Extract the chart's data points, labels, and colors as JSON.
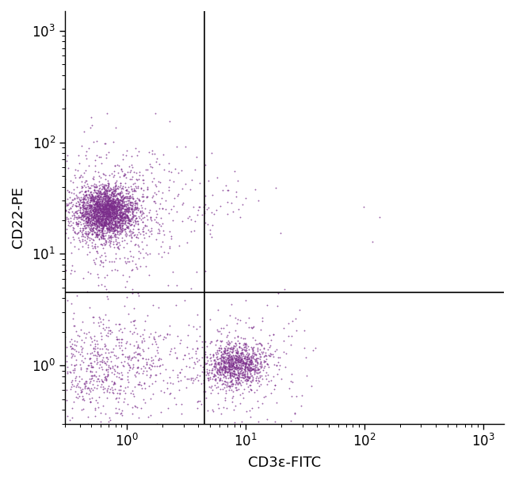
{
  "dot_color": "#7B2D8B",
  "dot_alpha": 0.75,
  "dot_size": 1.8,
  "background_color": "#ffffff",
  "xlabel": "CD3ε-FITC",
  "ylabel": "CD22-PE",
  "xline": 4.5,
  "yline": 4.5,
  "tick_vals": [
    1,
    10,
    100,
    1000
  ],
  "xlim": [
    0.3,
    1500
  ],
  "ylim": [
    0.3,
    1500
  ],
  "clusters": [
    {
      "name": "upper_left_B_cells",
      "center_x_log": -0.18,
      "center_y_log": 1.38,
      "spread_x": 0.22,
      "spread_y": 0.2,
      "n": 2200,
      "tight": true
    },
    {
      "name": "lower_left_neg",
      "center_x_log": -0.2,
      "center_y_log": 0.0,
      "spread_x": 0.3,
      "spread_y": 0.22,
      "n": 700,
      "tight": false
    },
    {
      "name": "lower_right_T_cells",
      "center_x_log": 0.92,
      "center_y_log": 0.0,
      "spread_x": 0.22,
      "spread_y": 0.18,
      "n": 900,
      "tight": true
    },
    {
      "name": "upper_right_sparse",
      "center_x_log": 0.6,
      "center_y_log": 1.45,
      "spread_x": 0.3,
      "spread_y": 0.22,
      "n": 80,
      "tight": false
    }
  ],
  "seed": 42
}
